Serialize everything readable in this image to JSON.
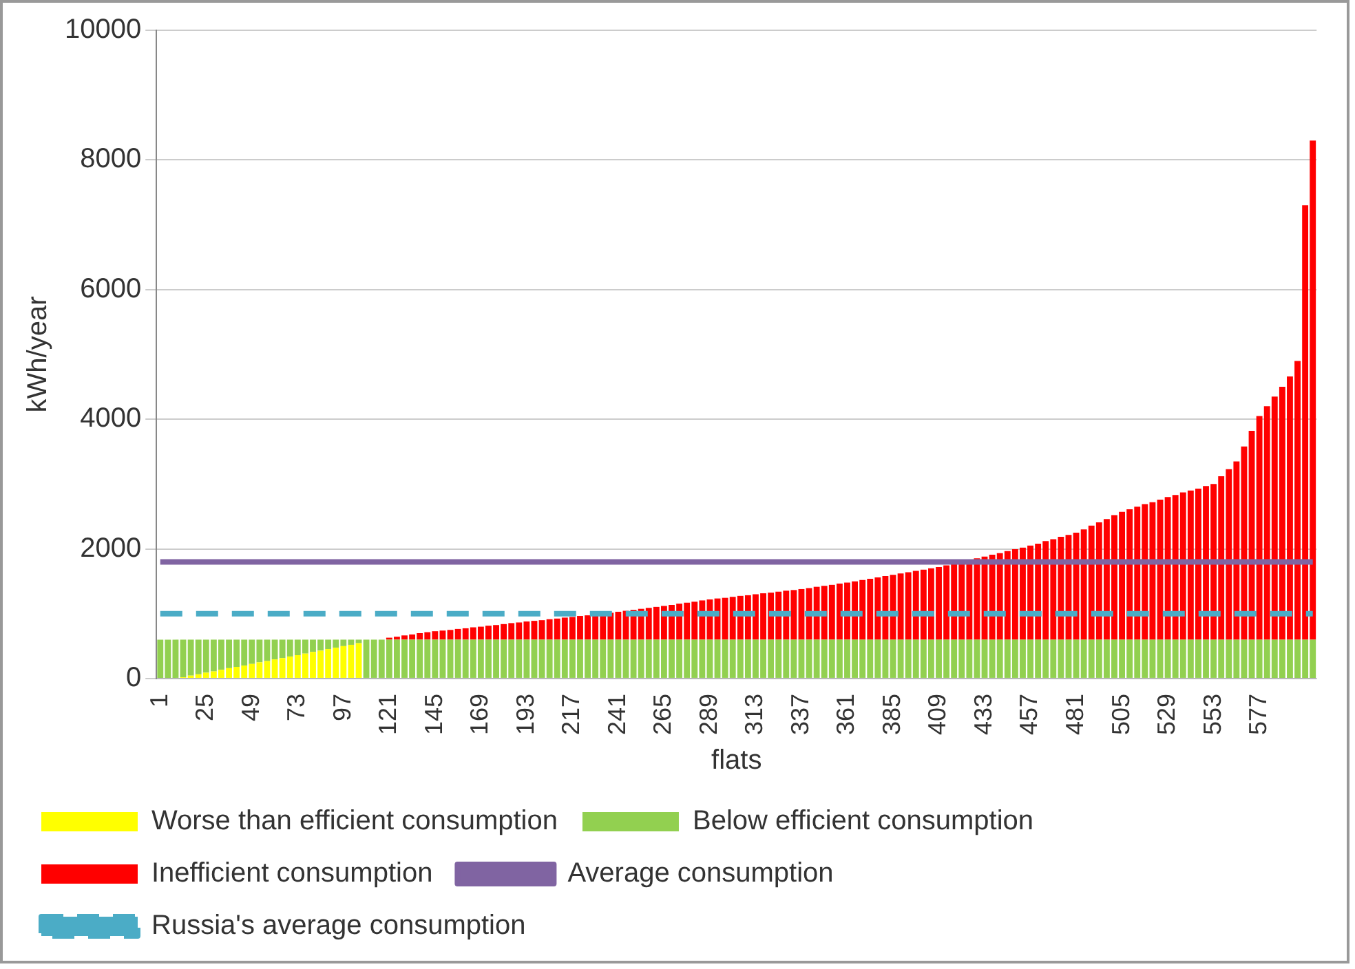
{
  "chart_data": {
    "type": "bar",
    "stacked": true,
    "xlabel": "flats",
    "ylabel": "kWh/year",
    "ylim": [
      0,
      10000
    ],
    "yticks": [
      0,
      2000,
      4000,
      6000,
      8000,
      10000
    ],
    "grid": "y",
    "legend": "bottom",
    "categories": [
      "1",
      null,
      null,
      null,
      null,
      null,
      "25",
      null,
      null,
      null,
      null,
      null,
      "49",
      null,
      null,
      null,
      null,
      null,
      "73",
      null,
      null,
      null,
      null,
      null,
      "97",
      null,
      null,
      null,
      null,
      null,
      "121",
      null,
      null,
      null,
      null,
      null,
      "145",
      null,
      null,
      null,
      null,
      null,
      "169",
      null,
      null,
      null,
      null,
      null,
      "193",
      null,
      null,
      null,
      null,
      null,
      "217",
      null,
      null,
      null,
      null,
      null,
      "241",
      null,
      null,
      null,
      null,
      null,
      "265",
      null,
      null,
      null,
      null,
      null,
      "289",
      null,
      null,
      null,
      null,
      null,
      "313",
      null,
      null,
      null,
      null,
      null,
      "337",
      null,
      null,
      null,
      null,
      null,
      "361",
      null,
      null,
      null,
      null,
      null,
      "385",
      null,
      null,
      null,
      null,
      null,
      "409",
      null,
      null,
      null,
      null,
      null,
      "433",
      null,
      null,
      null,
      null,
      null,
      "457",
      null,
      null,
      null,
      null,
      null,
      "481",
      null,
      null,
      null,
      null,
      null,
      "505",
      null,
      null,
      null,
      null,
      null,
      "529",
      null,
      null,
      null,
      null,
      null,
      "553",
      null,
      null,
      null,
      null,
      null,
      "577",
      null,
      null,
      null,
      null,
      null,
      null,
      null
    ],
    "series": [
      {
        "name": "Worse than efficient consumption",
        "color": "#ffff00",
        "values": [
          null,
          null,
          null,
          20,
          45,
          65,
          90,
          110,
          135,
          160,
          180,
          200,
          225,
          250,
          270,
          295,
          315,
          340,
          360,
          385,
          410,
          430,
          455,
          475,
          500,
          520,
          545,
          null,
          null,
          null,
          null,
          null,
          null,
          null,
          null,
          null,
          null,
          null,
          null,
          null,
          null,
          null,
          null,
          null,
          null,
          null,
          null,
          null,
          null,
          null,
          null,
          null,
          null,
          null,
          null,
          null,
          null,
          null,
          null,
          null,
          null,
          null,
          null,
          null,
          null,
          null,
          null,
          null,
          null,
          null,
          null,
          null,
          null,
          null,
          null,
          null,
          null,
          null,
          null,
          null,
          null,
          null,
          null,
          null,
          null,
          null,
          null,
          null,
          null,
          null,
          null,
          null,
          null,
          null,
          null,
          null,
          null,
          null,
          null,
          null,
          null,
          null,
          null,
          null,
          null,
          null,
          null,
          null,
          null,
          null,
          null,
          null,
          null,
          null,
          null,
          null,
          null,
          null,
          null,
          null,
          null,
          null,
          null,
          null,
          null,
          null,
          null,
          null,
          null,
          null,
          null,
          null,
          null,
          null,
          null,
          null,
          null,
          null,
          null,
          null,
          null,
          null,
          null,
          null,
          null,
          null,
          null,
          null,
          null,
          null,
          null,
          null
        ]
      },
      {
        "name": "Below efficient consumption",
        "color": "#92d050",
        "values": [
          600,
          600,
          600,
          580,
          555,
          535,
          510,
          490,
          465,
          440,
          420,
          400,
          375,
          350,
          330,
          305,
          285,
          260,
          240,
          215,
          190,
          170,
          145,
          125,
          100,
          80,
          55,
          600,
          600,
          600,
          600,
          600,
          600,
          600,
          600,
          600,
          600,
          600,
          600,
          600,
          600,
          600,
          600,
          600,
          600,
          600,
          600,
          600,
          600,
          600,
          600,
          600,
          600,
          600,
          600,
          600,
          600,
          600,
          600,
          600,
          600,
          600,
          600,
          600,
          600,
          600,
          600,
          600,
          600,
          600,
          600,
          600,
          600,
          600,
          600,
          600,
          600,
          600,
          600,
          600,
          600,
          600,
          600,
          600,
          600,
          600,
          600,
          600,
          600,
          600,
          600,
          600,
          600,
          600,
          600,
          600,
          600,
          600,
          600,
          600,
          600,
          600,
          600,
          600,
          600,
          600,
          600,
          600,
          600,
          600,
          600,
          600,
          600,
          600,
          600,
          600,
          600,
          600,
          600,
          600,
          600,
          600,
          600,
          600,
          600,
          600,
          600,
          600,
          600,
          600,
          600,
          600,
          600,
          600,
          600,
          600,
          600,
          600,
          600,
          600,
          600,
          600,
          600,
          600,
          600,
          600,
          600,
          600,
          600,
          600,
          600,
          600
        ]
      },
      {
        "name": "Inefficient consumption",
        "color": "#ff0000",
        "values": [
          null,
          null,
          null,
          null,
          null,
          null,
          null,
          null,
          null,
          null,
          null,
          null,
          null,
          null,
          null,
          null,
          null,
          null,
          null,
          null,
          null,
          null,
          null,
          null,
          null,
          null,
          null,
          null,
          null,
          null,
          30,
          45,
          65,
          80,
          100,
          115,
          130,
          140,
          150,
          165,
          175,
          190,
          200,
          215,
          225,
          240,
          255,
          265,
          280,
          290,
          300,
          315,
          325,
          340,
          350,
          365,
          375,
          390,
          405,
          415,
          430,
          445,
          460,
          475,
          490,
          505,
          520,
          535,
          555,
          570,
          585,
          605,
          620,
          635,
          645,
          660,
          675,
          685,
          700,
          715,
          725,
          740,
          755,
          765,
          780,
          795,
          815,
          830,
          845,
          865,
          880,
          900,
          920,
          940,
          960,
          980,
          1000,
          1020,
          1040,
          1060,
          1080,
          1100,
          1120,
          1145,
          1175,
          1200,
          1225,
          1255,
          1280,
          1310,
          1335,
          1365,
          1395,
          1420,
          1450,
          1480,
          1520,
          1550,
          1585,
          1615,
          1650,
          1700,
          1760,
          1810,
          1860,
          1920,
          1970,
          2010,
          2050,
          2090,
          2120,
          2160,
          2200,
          2230,
          2270,
          2300,
          2330,
          2370,
          2400,
          2520,
          2630,
          2750,
          2980,
          3220,
          3450,
          3600,
          3750,
          3900,
          4060,
          4300,
          6700,
          7700
        ]
      },
      {
        "name": "Average consumption",
        "type": "line",
        "color": "#8064a2",
        "line_style": "solid",
        "values": [
          1800,
          1800,
          1800,
          1800,
          1800,
          1800,
          1800,
          1800,
          1800,
          1800,
          1800,
          1800,
          1800,
          1800,
          1800,
          1800,
          1800,
          1800,
          1800,
          1800,
          1800,
          1800,
          1800,
          1800,
          1800,
          1800,
          1800,
          1800,
          1800,
          1800,
          1800,
          1800,
          1800,
          1800,
          1800,
          1800,
          1800,
          1800,
          1800,
          1800,
          1800,
          1800,
          1800,
          1800,
          1800,
          1800,
          1800,
          1800,
          1800,
          1800,
          1800,
          1800,
          1800,
          1800,
          1800,
          1800,
          1800,
          1800,
          1800,
          1800,
          1800,
          1800,
          1800,
          1800,
          1800,
          1800,
          1800,
          1800,
          1800,
          1800,
          1800,
          1800,
          1800,
          1800,
          1800,
          1800,
          1800,
          1800,
          1800,
          1800,
          1800,
          1800,
          1800,
          1800,
          1800,
          1800,
          1800,
          1800,
          1800,
          1800,
          1800,
          1800,
          1800,
          1800,
          1800,
          1800,
          1800,
          1800,
          1800,
          1800,
          1800,
          1800,
          1800,
          1800,
          1800,
          1800,
          1800,
          1800,
          1800,
          1800,
          1800,
          1800,
          1800,
          1800,
          1800,
          1800,
          1800,
          1800,
          1800,
          1800,
          1800,
          1800,
          1800,
          1800,
          1800,
          1800,
          1800,
          1800,
          1800,
          1800,
          1800,
          1800,
          1800,
          1800,
          1800,
          1800,
          1800,
          1800,
          1800,
          1800,
          1800,
          1800,
          1800,
          1800,
          1800,
          1800,
          1800,
          1800,
          1800,
          1800,
          1800,
          1800
        ]
      },
      {
        "name": "Russia's average consumption",
        "type": "line",
        "color": "#4bacc6",
        "line_style": "dashed",
        "values": [
          1000,
          1000,
          1000,
          1000,
          1000,
          1000,
          1000,
          1000,
          1000,
          1000,
          1000,
          1000,
          1000,
          1000,
          1000,
          1000,
          1000,
          1000,
          1000,
          1000,
          1000,
          1000,
          1000,
          1000,
          1000,
          1000,
          1000,
          1000,
          1000,
          1000,
          1000,
          1000,
          1000,
          1000,
          1000,
          1000,
          1000,
          1000,
          1000,
          1000,
          1000,
          1000,
          1000,
          1000,
          1000,
          1000,
          1000,
          1000,
          1000,
          1000,
          1000,
          1000,
          1000,
          1000,
          1000,
          1000,
          1000,
          1000,
          1000,
          1000,
          1000,
          1000,
          1000,
          1000,
          1000,
          1000,
          1000,
          1000,
          1000,
          1000,
          1000,
          1000,
          1000,
          1000,
          1000,
          1000,
          1000,
          1000,
          1000,
          1000,
          1000,
          1000,
          1000,
          1000,
          1000,
          1000,
          1000,
          1000,
          1000,
          1000,
          1000,
          1000,
          1000,
          1000,
          1000,
          1000,
          1000,
          1000,
          1000,
          1000,
          1000,
          1000,
          1000,
          1000,
          1000,
          1000,
          1000,
          1000,
          1000,
          1000,
          1000,
          1000,
          1000,
          1000,
          1000,
          1000,
          1000,
          1000,
          1000,
          1000,
          1000,
          1000,
          1000,
          1000,
          1000,
          1000,
          1000,
          1000,
          1000,
          1000,
          1000,
          1000,
          1000,
          1000,
          1000,
          1000,
          1000,
          1000,
          1000,
          1000,
          1000,
          1000,
          1000,
          1000,
          1000,
          1000,
          1000,
          1000,
          1000,
          1000,
          1000,
          1000
        ]
      }
    ]
  }
}
